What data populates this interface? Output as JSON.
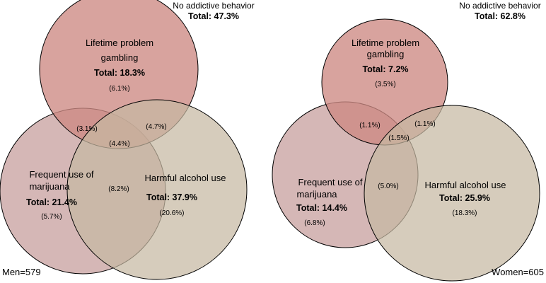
{
  "colors": {
    "gambling": "#cd8983",
    "marijuana": "#c9a3a1",
    "alcohol": "#c6b9a2"
  },
  "panels": [
    {
      "caption": "Men=579",
      "none": {
        "label": "No addictive behavior",
        "total": "Total: 47.3%"
      },
      "gambling": {
        "label_line1": "Lifetime problem",
        "label_line2": "gambling",
        "total": "Total: 18.3%",
        "only": "(6.1%)"
      },
      "marijuana": {
        "label_line1": "Frequent use of",
        "label_line2": "marijuana",
        "total": "Total: 21.4%",
        "only": "(5.7%)"
      },
      "alcohol": {
        "label": "Harmful alcohol use",
        "total": "Total: 37.9%",
        "only": "(20.6%)"
      },
      "overlaps": {
        "gambling_marijuana": "(3.1%)",
        "gambling_alcohol": "(4.7%)",
        "all_three": "(4.4%)",
        "marijuana_alcohol": "(8.2%)"
      }
    },
    {
      "caption": "Women=605",
      "none": {
        "label": "No addictive behavior",
        "total": "Total: 62.8%"
      },
      "gambling": {
        "label_line1": "Lifetime problem",
        "label_line2": "gambling",
        "total": "Total: 7.2%",
        "only": "(3.5%)"
      },
      "marijuana": {
        "label_line1": "Frequent use of",
        "label_line2": "marijuana",
        "total": "Total: 14.4%",
        "only": "(6.8%)"
      },
      "alcohol": {
        "label": "Harmful alcohol use",
        "total": "Total: 25.9%",
        "only": "(18.3%)"
      },
      "overlaps": {
        "gambling_marijuana": "(1.1%)",
        "gambling_alcohol": "(1.1%)",
        "all_three": "(1.5%)",
        "marijuana_alcohol": "(5.0%)"
      }
    }
  ]
}
